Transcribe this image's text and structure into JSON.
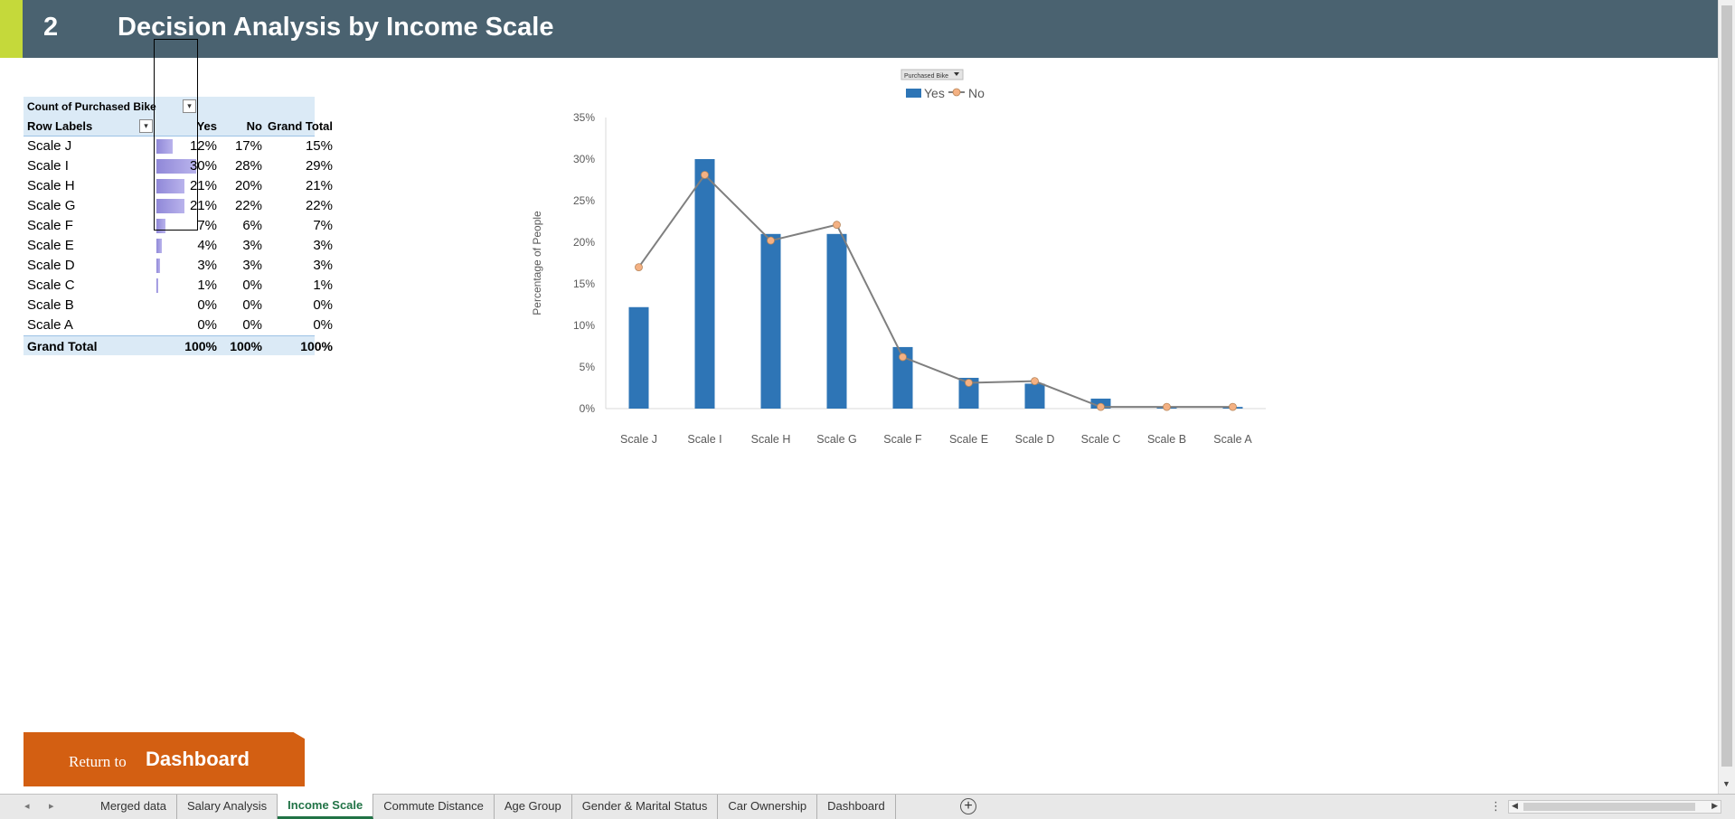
{
  "header": {
    "number": "2",
    "title": "Decision Analysis by Income Scale"
  },
  "pivot": {
    "title": "Count of Purchased Bike",
    "col_row_labels": "Row Labels",
    "col_yes": "Yes",
    "col_no": "No",
    "col_grand_total": "Grand Total",
    "rows": [
      {
        "label": "Scale J",
        "yes": "12%",
        "no": "17%",
        "total": "15%",
        "yes_value": 12
      },
      {
        "label": "Scale I",
        "yes": "30%",
        "no": "28%",
        "total": "29%",
        "yes_value": 30
      },
      {
        "label": "Scale H",
        "yes": "21%",
        "no": "20%",
        "total": "21%",
        "yes_value": 21
      },
      {
        "label": "Scale G",
        "yes": "21%",
        "no": "22%",
        "total": "22%",
        "yes_value": 21
      },
      {
        "label": "Scale F",
        "yes": "7%",
        "no": "6%",
        "total": "7%",
        "yes_value": 7
      },
      {
        "label": "Scale E",
        "yes": "4%",
        "no": "3%",
        "total": "3%",
        "yes_value": 4
      },
      {
        "label": "Scale D",
        "yes": "3%",
        "no": "3%",
        "total": "3%",
        "yes_value": 3
      },
      {
        "label": "Scale C",
        "yes": "1%",
        "no": "0%",
        "total": "1%",
        "yes_value": 1
      },
      {
        "label": "Scale B",
        "yes": "0%",
        "no": "0%",
        "total": "0%",
        "yes_value": 0
      },
      {
        "label": "Scale A",
        "yes": "0%",
        "no": "0%",
        "total": "0%",
        "yes_value": 0
      }
    ],
    "grand_total": {
      "label": "Grand Total",
      "yes": "100%",
      "no": "100%",
      "total": "100%"
    },
    "databar_color": "#9088d8"
  },
  "chart_data": {
    "type": "bar",
    "filter_button": "Purchased Bike",
    "categories": [
      "Scale J",
      "Scale I",
      "Scale H",
      "Scale G",
      "Scale F",
      "Scale E",
      "Scale D",
      "Scale C",
      "Scale B",
      "Scale A"
    ],
    "series": [
      {
        "name": "Yes",
        "type": "bar",
        "color": "#2e75b6",
        "values": [
          12.2,
          30.0,
          21.0,
          21.0,
          7.4,
          3.7,
          3.0,
          1.2,
          0.2,
          0.2
        ]
      },
      {
        "name": "No",
        "type": "line",
        "color": "#7f7f7f",
        "marker_color": "#f4b183",
        "values": [
          17.0,
          28.1,
          20.2,
          22.1,
          6.2,
          3.1,
          3.3,
          0.2,
          0.2,
          0.2
        ]
      }
    ],
    "ylabel": "Percentage of  People",
    "ylim": [
      0,
      35
    ],
    "yticks": [
      "0%",
      "5%",
      "10%",
      "15%",
      "20%",
      "25%",
      "30%",
      "35%"
    ],
    "ytick_values": [
      0,
      5,
      10,
      15,
      20,
      25,
      30,
      35
    ],
    "legend_position": "top",
    "grid": false
  },
  "return_button": {
    "prefix": "Return  to",
    "label": "Dashboard"
  },
  "sheets": {
    "tabs": [
      "Merged data",
      "Salary Analysis",
      "Income Scale",
      "Commute Distance",
      "Age Group",
      "Gender & Marital Status",
      "Car Ownership",
      "Dashboard"
    ],
    "active": "Income Scale"
  }
}
